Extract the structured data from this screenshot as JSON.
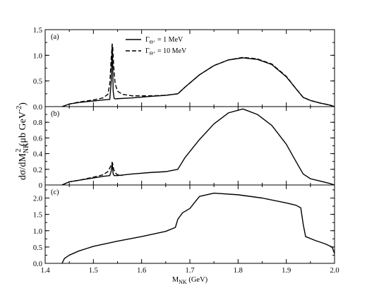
{
  "chart_data": [
    {
      "type": "line",
      "panel_label": "(a)",
      "xlim": [
        1.4,
        2.0
      ],
      "ylim": [
        0,
        1.5
      ],
      "yticks": [
        "0.0",
        "0.5",
        "1.0",
        "1.5"
      ],
      "legend": {
        "placement": "top-center",
        "entries": [
          {
            "label": "Γ",
            "sub": "Θ⁺",
            "suffix": " = 1 MeV",
            "style": "solid"
          },
          {
            "label": "Γ",
            "sub": "Θ⁺",
            "suffix": " = 10 MeV",
            "style": "dashed"
          }
        ]
      },
      "series": [
        {
          "style": "solid",
          "x": [
            1.435,
            1.45,
            1.47,
            1.5,
            1.52,
            1.534,
            1.537,
            1.539,
            1.54,
            1.541,
            1.543,
            1.546,
            1.55,
            1.58,
            1.62,
            1.65,
            1.675,
            1.69,
            1.72,
            1.75,
            1.78,
            1.81,
            1.84,
            1.87,
            1.9,
            1.92,
            1.935,
            1.95,
            1.97,
            1.99,
            2.0
          ],
          "y": [
            0.0,
            0.05,
            0.08,
            0.11,
            0.13,
            0.14,
            0.5,
            1.2,
            0.8,
            0.3,
            0.16,
            0.15,
            0.155,
            0.17,
            0.2,
            0.22,
            0.25,
            0.38,
            0.62,
            0.8,
            0.91,
            0.95,
            0.92,
            0.82,
            0.58,
            0.35,
            0.18,
            0.12,
            0.07,
            0.03,
            0.0
          ]
        },
        {
          "style": "dashed",
          "x": [
            1.435,
            1.45,
            1.47,
            1.5,
            1.52,
            1.53,
            1.534,
            1.537,
            1.539,
            1.54,
            1.542,
            1.545,
            1.55,
            1.56,
            1.58,
            1.62,
            1.65,
            1.675,
            1.69,
            1.72,
            1.75,
            1.78,
            1.81,
            1.84,
            1.87,
            1.9,
            1.92,
            1.935,
            1.95,
            1.97,
            1.99,
            2.0
          ],
          "y": [
            0.0,
            0.05,
            0.09,
            0.13,
            0.17,
            0.24,
            0.45,
            0.95,
            1.22,
            1.18,
            0.8,
            0.45,
            0.3,
            0.24,
            0.21,
            0.21,
            0.22,
            0.25,
            0.38,
            0.62,
            0.8,
            0.91,
            0.96,
            0.93,
            0.83,
            0.59,
            0.35,
            0.18,
            0.12,
            0.07,
            0.03,
            0.0
          ]
        }
      ]
    },
    {
      "type": "line",
      "panel_label": "(b)",
      "xlim": [
        1.4,
        2.0
      ],
      "ylim": [
        0,
        1.0
      ],
      "yticks": [
        "0",
        "0.2",
        "0.4",
        "0.6",
        "0.8"
      ],
      "series": [
        {
          "style": "solid",
          "x": [
            1.435,
            1.45,
            1.47,
            1.5,
            1.52,
            1.534,
            1.537,
            1.539,
            1.54,
            1.541,
            1.543,
            1.546,
            1.55,
            1.58,
            1.62,
            1.65,
            1.675,
            1.69,
            1.72,
            1.75,
            1.78,
            1.81,
            1.84,
            1.87,
            1.9,
            1.92,
            1.935,
            1.95,
            1.97,
            1.99,
            2.0
          ],
          "y": [
            0.0,
            0.04,
            0.06,
            0.09,
            0.11,
            0.12,
            0.18,
            0.28,
            0.2,
            0.14,
            0.12,
            0.12,
            0.12,
            0.14,
            0.16,
            0.17,
            0.2,
            0.35,
            0.58,
            0.78,
            0.92,
            0.97,
            0.9,
            0.76,
            0.52,
            0.3,
            0.14,
            0.08,
            0.05,
            0.02,
            0.0
          ]
        },
        {
          "style": "dashed",
          "x": [
            1.435,
            1.45,
            1.47,
            1.5,
            1.52,
            1.53,
            1.535,
            1.539,
            1.54,
            1.542,
            1.546,
            1.55,
            1.56
          ],
          "y": [
            0.0,
            0.04,
            0.06,
            0.1,
            0.13,
            0.17,
            0.23,
            0.29,
            0.27,
            0.2,
            0.15,
            0.13,
            0.12
          ]
        }
      ]
    },
    {
      "type": "line",
      "panel_label": "(c)",
      "xlim": [
        1.4,
        2.0
      ],
      "ylim": [
        0,
        2.4
      ],
      "yticks": [
        "0.0",
        "0.5",
        "1.0",
        "1.5",
        "2.0"
      ],
      "xticks": [
        "1.4",
        "1.5",
        "1.6",
        "1.7",
        "1.8",
        "1.9",
        "2.0"
      ],
      "xlabel": {
        "main": "M",
        "sub": "NK",
        "suffix": " (GeV)"
      },
      "series": [
        {
          "style": "solid",
          "x": [
            1.435,
            1.44,
            1.45,
            1.47,
            1.5,
            1.55,
            1.6,
            1.65,
            1.67,
            1.675,
            1.685,
            1.7,
            1.72,
            1.75,
            1.8,
            1.85,
            1.9,
            1.92,
            1.93,
            1.935,
            1.94,
            1.96,
            1.98,
            1.995,
            2.0
          ],
          "y": [
            0.0,
            0.15,
            0.25,
            0.38,
            0.52,
            0.68,
            0.82,
            0.98,
            1.1,
            1.35,
            1.55,
            1.68,
            2.05,
            2.15,
            2.1,
            2.0,
            1.85,
            1.78,
            1.7,
            1.2,
            0.82,
            0.7,
            0.6,
            0.5,
            0.3
          ]
        }
      ]
    }
  ],
  "ylabel": {
    "prefix": "dσ/dM",
    "sub": "NK",
    "sup": "2",
    "unit_open": " (μb GeV",
    "unit_sup": "-2",
    "unit_close": ")"
  }
}
